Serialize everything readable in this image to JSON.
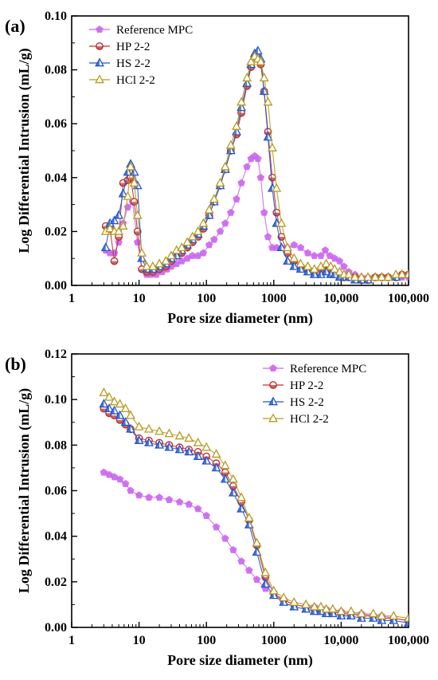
{
  "chart_data": [
    {
      "type": "line",
      "panel_label": "(a)",
      "xlabel": "Pore size diameter (nm)",
      "ylabel": "Log Differential Intrusion (mL/g)",
      "xscale": "log",
      "xlim": [
        1,
        100000
      ],
      "ylim": [
        0,
        0.1
      ],
      "x_ticks": [
        1,
        10,
        100,
        1000,
        10000,
        100000
      ],
      "x_tick_labels": [
        "1",
        "10",
        "100",
        "1000",
        "10,000",
        "100,000"
      ],
      "y_ticks": [
        0,
        0.02,
        0.04,
        0.06,
        0.08,
        0.1
      ],
      "y_tick_labels": [
        "0.00",
        "0.02",
        "0.04",
        "0.06",
        "0.08",
        "0.10"
      ],
      "legend_position": "top-left",
      "series": [
        {
          "name": "Reference MPC",
          "color": "#cc66ee",
          "marker": "pentagon",
          "x": [
            3.2,
            3.7,
            4.3,
            5,
            5.8,
            6.8,
            8,
            9.5,
            11,
            13,
            15,
            18,
            22,
            26,
            30,
            36,
            43,
            52,
            62,
            75,
            90,
            110,
            130,
            160,
            190,
            230,
            280,
            330,
            400,
            460,
            520,
            580,
            640,
            720,
            820,
            950,
            1100,
            1300,
            1600,
            2000,
            2500,
            3200,
            4000,
            5000,
            5800,
            6800,
            8000,
            9500,
            11000,
            13000,
            16000,
            20000,
            25000,
            32000,
            40000,
            50000,
            65000,
            80000,
            100000
          ],
          "y": [
            0.013,
            0.012,
            0.012,
            0.016,
            0.023,
            0.029,
            0.031,
            0.016,
            0.006,
            0.004,
            0.004,
            0.004,
            0.005,
            0.006,
            0.007,
            0.008,
            0.009,
            0.01,
            0.011,
            0.011,
            0.012,
            0.015,
            0.017,
            0.02,
            0.023,
            0.027,
            0.032,
            0.038,
            0.044,
            0.047,
            0.048,
            0.047,
            0.04,
            0.027,
            0.018,
            0.014,
            0.014,
            0.014,
            0.014,
            0.015,
            0.014,
            0.012,
            0.011,
            0.011,
            0.013,
            0.011,
            0.01,
            0.009,
            0.007,
            0.005,
            0.004,
            0.003,
            0.003,
            0.003,
            0.003,
            0.003,
            0.003,
            0.003,
            0.003
          ]
        },
        {
          "name": "HP 2-2",
          "color": "#c03030",
          "marker": "circle",
          "x": [
            3.2,
            3.7,
            4.3,
            5,
            5.8,
            6.8,
            7.5,
            8.5,
            9.5,
            11,
            13,
            16,
            20,
            25,
            30,
            36,
            43,
            52,
            62,
            75,
            90,
            110,
            130,
            160,
            190,
            230,
            280,
            330,
            400,
            460,
            520,
            580,
            640,
            720,
            820,
            950,
            1100,
            1300,
            1600,
            2000,
            2500,
            3200,
            4000,
            5000,
            6000,
            7000,
            8000,
            9500,
            11000,
            13000,
            16000,
            20000,
            25000,
            32000,
            40000,
            50000,
            65000,
            80000,
            100000
          ],
          "y": [
            0.022,
            0.021,
            0.009,
            0.018,
            0.038,
            0.039,
            0.04,
            0.031,
            0.02,
            0.006,
            0.005,
            0.005,
            0.006,
            0.007,
            0.009,
            0.011,
            0.012,
            0.014,
            0.016,
            0.018,
            0.021,
            0.026,
            0.031,
            0.037,
            0.043,
            0.05,
            0.056,
            0.064,
            0.074,
            0.081,
            0.085,
            0.085,
            0.082,
            0.072,
            0.057,
            0.04,
            0.027,
            0.018,
            0.012,
            0.009,
            0.007,
            0.006,
            0.005,
            0.006,
            0.007,
            0.006,
            0.005,
            0.004,
            0.003,
            0.003,
            0.003,
            0.002,
            0.002,
            0.003,
            0.003,
            0.003,
            0.003,
            0.004,
            0.004
          ]
        },
        {
          "name": "HS 2-2",
          "color": "#2255cc",
          "marker": "triangle",
          "x": [
            3.2,
            3.7,
            4.3,
            5,
            5.8,
            6.8,
            7.5,
            8.5,
            9.5,
            11,
            13,
            16,
            20,
            25,
            30,
            36,
            43,
            52,
            62,
            75,
            90,
            110,
            130,
            160,
            190,
            230,
            280,
            330,
            400,
            460,
            520,
            580,
            640,
            720,
            820,
            950,
            1100,
            1300,
            1600,
            2000,
            2500,
            3200,
            4000,
            5000,
            6000,
            7000,
            8000,
            9500,
            11000,
            13000,
            16000,
            20000,
            25000,
            32000,
            40000,
            50000,
            65000,
            80000,
            100000
          ],
          "y": [
            0.014,
            0.023,
            0.024,
            0.026,
            0.034,
            0.042,
            0.045,
            0.042,
            0.037,
            0.01,
            0.006,
            0.006,
            0.007,
            0.008,
            0.01,
            0.011,
            0.013,
            0.015,
            0.017,
            0.019,
            0.022,
            0.026,
            0.031,
            0.037,
            0.043,
            0.05,
            0.057,
            0.066,
            0.075,
            0.082,
            0.086,
            0.087,
            0.084,
            0.072,
            0.055,
            0.036,
            0.023,
            0.014,
            0.009,
            0.007,
            0.006,
            0.005,
            0.004,
            0.004,
            0.005,
            0.004,
            0.004,
            0.003,
            0.003,
            0.003,
            0.002,
            0.002,
            0.002,
            0.003,
            0.003,
            0.003,
            0.003,
            0.004,
            0.004
          ]
        },
        {
          "name": "HCl 2-2",
          "color": "#b89a20",
          "marker": "triangle-open",
          "x": [
            3.2,
            3.7,
            4.3,
            5,
            5.8,
            6.8,
            7.5,
            8.5,
            9.5,
            11,
            13,
            16,
            20,
            25,
            30,
            36,
            43,
            52,
            62,
            75,
            90,
            110,
            130,
            160,
            190,
            230,
            280,
            330,
            400,
            460,
            520,
            580,
            640,
            720,
            820,
            950,
            1100,
            1300,
            1600,
            2000,
            2500,
            3200,
            4000,
            5000,
            6000,
            7000,
            8000,
            9500,
            11000,
            13000,
            16000,
            20000,
            25000,
            32000,
            40000,
            50000,
            65000,
            80000,
            100000
          ],
          "y": [
            0.02,
            0.021,
            0.02,
            0.02,
            0.022,
            0.033,
            0.044,
            0.038,
            0.026,
            0.012,
            0.007,
            0.007,
            0.008,
            0.009,
            0.011,
            0.013,
            0.014,
            0.016,
            0.018,
            0.02,
            0.023,
            0.028,
            0.032,
            0.038,
            0.044,
            0.052,
            0.059,
            0.068,
            0.077,
            0.083,
            0.085,
            0.084,
            0.083,
            0.077,
            0.068,
            0.051,
            0.036,
            0.023,
            0.014,
            0.01,
            0.008,
            0.007,
            0.006,
            0.007,
            0.008,
            0.007,
            0.006,
            0.005,
            0.004,
            0.004,
            0.003,
            0.003,
            0.003,
            0.003,
            0.003,
            0.003,
            0.004,
            0.004,
            0.004
          ]
        }
      ]
    },
    {
      "type": "line",
      "panel_label": "(b)",
      "xlabel": "Pore size diameter (nm)",
      "ylabel": "Log Differential Intrusion (mL/g)",
      "xscale": "log",
      "xlim": [
        1,
        100000
      ],
      "ylim": [
        0,
        0.12
      ],
      "x_ticks": [
        1,
        10,
        100,
        1000,
        10000,
        100000
      ],
      "x_tick_labels": [
        "1",
        "10",
        "100",
        "1000",
        "10,000",
        "100,000"
      ],
      "y_ticks": [
        0,
        0.02,
        0.04,
        0.06,
        0.08,
        0.1,
        0.12
      ],
      "y_tick_labels": [
        "0.00",
        "0.02",
        "0.04",
        "0.06",
        "0.08",
        "0.10",
        "0.12"
      ],
      "legend_position": "top-right",
      "series": [
        {
          "name": "Reference MPC",
          "color": "#cc66ee",
          "marker": "pentagon",
          "x": [
            3,
            3.6,
            4.3,
            5.2,
            6.3,
            7.5,
            10,
            14,
            20,
            28,
            40,
            55,
            75,
            100,
            140,
            190,
            250,
            330,
            430,
            560,
            750,
            1000,
            1400,
            2000,
            3000,
            4000,
            5000,
            6000,
            7500,
            10000,
            14000,
            20000,
            30000,
            40000,
            60000,
            100000
          ],
          "y": [
            0.068,
            0.067,
            0.066,
            0.065,
            0.063,
            0.06,
            0.058,
            0.057,
            0.057,
            0.056,
            0.055,
            0.054,
            0.052,
            0.049,
            0.044,
            0.039,
            0.034,
            0.029,
            0.025,
            0.021,
            0.017,
            0.014,
            0.012,
            0.01,
            0.009,
            0.009,
            0.008,
            0.008,
            0.007,
            0.007,
            0.006,
            0.006,
            0.005,
            0.005,
            0.004,
            0.003
          ]
        },
        {
          "name": "HP 2-2",
          "color": "#c03030",
          "marker": "circle",
          "x": [
            3,
            3.6,
            4.3,
            5.2,
            6.3,
            7.5,
            10,
            14,
            20,
            28,
            40,
            55,
            75,
            100,
            140,
            190,
            250,
            330,
            430,
            560,
            750,
            1000,
            1400,
            2000,
            3000,
            4000,
            5000,
            6000,
            7500,
            10000,
            14000,
            20000,
            30000,
            40000,
            60000,
            100000
          ],
          "y": [
            0.096,
            0.094,
            0.093,
            0.091,
            0.089,
            0.087,
            0.083,
            0.082,
            0.081,
            0.08,
            0.079,
            0.078,
            0.077,
            0.075,
            0.072,
            0.068,
            0.062,
            0.055,
            0.047,
            0.036,
            0.022,
            0.015,
            0.012,
            0.01,
            0.009,
            0.008,
            0.008,
            0.007,
            0.007,
            0.006,
            0.006,
            0.005,
            0.005,
            0.004,
            0.004,
            0.003
          ]
        },
        {
          "name": "HS 2-2",
          "color": "#2255cc",
          "marker": "triangle",
          "x": [
            3,
            3.6,
            4.3,
            5.2,
            6.3,
            7.5,
            10,
            14,
            20,
            28,
            40,
            55,
            75,
            100,
            140,
            190,
            250,
            330,
            430,
            560,
            750,
            1000,
            1400,
            2000,
            3000,
            4000,
            5000,
            6000,
            7500,
            10000,
            14000,
            20000,
            30000,
            40000,
            60000,
            100000
          ],
          "y": [
            0.098,
            0.096,
            0.095,
            0.093,
            0.09,
            0.087,
            0.082,
            0.081,
            0.08,
            0.079,
            0.078,
            0.077,
            0.075,
            0.073,
            0.07,
            0.065,
            0.059,
            0.052,
            0.045,
            0.033,
            0.019,
            0.014,
            0.011,
            0.009,
            0.008,
            0.007,
            0.007,
            0.006,
            0.006,
            0.005,
            0.005,
            0.004,
            0.004,
            0.003,
            0.003,
            0.002
          ]
        },
        {
          "name": "HCl 2-2",
          "color": "#b89a20",
          "marker": "triangle-open",
          "x": [
            3,
            3.6,
            4.3,
            5.2,
            6.3,
            7.5,
            10,
            14,
            20,
            28,
            40,
            55,
            75,
            100,
            140,
            190,
            250,
            330,
            430,
            560,
            750,
            1000,
            1400,
            2000,
            3000,
            4000,
            5000,
            6000,
            7500,
            10000,
            14000,
            20000,
            30000,
            40000,
            60000,
            100000
          ],
          "y": [
            0.103,
            0.101,
            0.099,
            0.098,
            0.096,
            0.093,
            0.088,
            0.087,
            0.086,
            0.085,
            0.084,
            0.083,
            0.081,
            0.079,
            0.076,
            0.071,
            0.065,
            0.057,
            0.048,
            0.037,
            0.024,
            0.016,
            0.013,
            0.011,
            0.01,
            0.009,
            0.009,
            0.008,
            0.008,
            0.007,
            0.007,
            0.006,
            0.006,
            0.005,
            0.005,
            0.004
          ]
        }
      ]
    }
  ]
}
